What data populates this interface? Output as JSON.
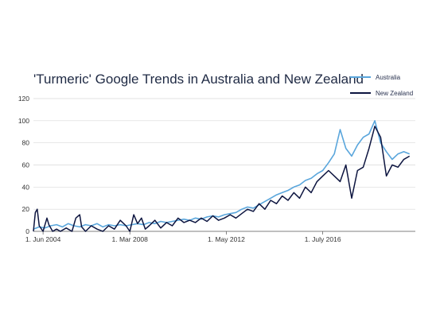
{
  "chart_data": {
    "type": "line",
    "title": "'Turmeric' Google Trends in Australia and New Zealand",
    "xlabel": "",
    "ylabel": "",
    "ylim": [
      0,
      120
    ],
    "yticks": [
      0,
      20,
      40,
      60,
      80,
      100,
      120
    ],
    "xlim": [
      "2004-01",
      "2020-07"
    ],
    "xticks": [
      {
        "date": "2004-06",
        "label": "1. Jun 2004"
      },
      {
        "date": "2008-03",
        "label": "1. Mar 2008"
      },
      {
        "date": "2012-05",
        "label": "1. May 2012"
      },
      {
        "date": "2016-07",
        "label": "1. July 2016"
      }
    ],
    "grid": "horizontal",
    "legend": "top-right",
    "series": [
      {
        "name": "Australia",
        "color": "#5aa6dc",
        "points": [
          [
            "2004-01",
            2
          ],
          [
            "2004-04",
            4
          ],
          [
            "2004-07",
            3
          ],
          [
            "2004-10",
            5
          ],
          [
            "2005-01",
            6
          ],
          [
            "2005-04",
            4
          ],
          [
            "2005-07",
            7
          ],
          [
            "2005-10",
            5
          ],
          [
            "2006-01",
            4
          ],
          [
            "2006-04",
            6
          ],
          [
            "2006-07",
            5
          ],
          [
            "2006-10",
            7
          ],
          [
            "2007-01",
            4
          ],
          [
            "2007-04",
            6
          ],
          [
            "2007-07",
            5
          ],
          [
            "2007-10",
            6
          ],
          [
            "2008-01",
            5
          ],
          [
            "2008-04",
            6
          ],
          [
            "2008-07",
            7
          ],
          [
            "2008-10",
            6
          ],
          [
            "2009-01",
            8
          ],
          [
            "2009-04",
            7
          ],
          [
            "2009-07",
            9
          ],
          [
            "2009-10",
            8
          ],
          [
            "2010-01",
            9
          ],
          [
            "2010-04",
            10
          ],
          [
            "2010-07",
            11
          ],
          [
            "2010-10",
            10
          ],
          [
            "2011-01",
            12
          ],
          [
            "2011-04",
            11
          ],
          [
            "2011-07",
            13
          ],
          [
            "2011-10",
            14
          ],
          [
            "2012-01",
            13
          ],
          [
            "2012-04",
            15
          ],
          [
            "2012-07",
            16
          ],
          [
            "2012-10",
            17
          ],
          [
            "2013-01",
            20
          ],
          [
            "2013-04",
            22
          ],
          [
            "2013-07",
            21
          ],
          [
            "2013-10",
            24
          ],
          [
            "2014-01",
            27
          ],
          [
            "2014-04",
            30
          ],
          [
            "2014-07",
            33
          ],
          [
            "2014-10",
            35
          ],
          [
            "2015-01",
            37
          ],
          [
            "2015-04",
            40
          ],
          [
            "2015-07",
            42
          ],
          [
            "2015-10",
            46
          ],
          [
            "2016-01",
            48
          ],
          [
            "2016-04",
            52
          ],
          [
            "2016-07",
            55
          ],
          [
            "2016-10",
            62
          ],
          [
            "2017-01",
            70
          ],
          [
            "2017-04",
            92
          ],
          [
            "2017-07",
            75
          ],
          [
            "2017-10",
            68
          ],
          [
            "2018-01",
            78
          ],
          [
            "2018-04",
            85
          ],
          [
            "2018-07",
            88
          ],
          [
            "2018-10",
            100
          ],
          [
            "2019-01",
            80
          ],
          [
            "2019-04",
            72
          ],
          [
            "2019-07",
            65
          ],
          [
            "2019-10",
            70
          ],
          [
            "2020-01",
            72
          ],
          [
            "2020-04",
            70
          ]
        ]
      },
      {
        "name": "New Zealand",
        "color": "#0d1540",
        "points": [
          [
            "2004-01",
            0
          ],
          [
            "2004-02",
            17
          ],
          [
            "2004-03",
            20
          ],
          [
            "2004-04",
            5
          ],
          [
            "2004-06",
            0
          ],
          [
            "2004-08",
            12
          ],
          [
            "2004-09",
            6
          ],
          [
            "2004-11",
            0
          ],
          [
            "2005-01",
            2
          ],
          [
            "2005-03",
            0
          ],
          [
            "2005-06",
            3
          ],
          [
            "2005-09",
            0
          ],
          [
            "2005-11",
            12
          ],
          [
            "2006-01",
            15
          ],
          [
            "2006-02",
            4
          ],
          [
            "2006-04",
            0
          ],
          [
            "2006-07",
            5
          ],
          [
            "2006-10",
            2
          ],
          [
            "2007-01",
            0
          ],
          [
            "2007-04",
            5
          ],
          [
            "2007-07",
            2
          ],
          [
            "2007-10",
            10
          ],
          [
            "2008-01",
            5
          ],
          [
            "2008-03",
            0
          ],
          [
            "2008-05",
            15
          ],
          [
            "2008-07",
            7
          ],
          [
            "2008-09",
            12
          ],
          [
            "2008-11",
            2
          ],
          [
            "2009-01",
            5
          ],
          [
            "2009-04",
            10
          ],
          [
            "2009-07",
            3
          ],
          [
            "2009-10",
            8
          ],
          [
            "2010-01",
            5
          ],
          [
            "2010-04",
            12
          ],
          [
            "2010-07",
            8
          ],
          [
            "2010-10",
            10
          ],
          [
            "2011-01",
            8
          ],
          [
            "2011-04",
            12
          ],
          [
            "2011-07",
            9
          ],
          [
            "2011-10",
            14
          ],
          [
            "2012-01",
            10
          ],
          [
            "2012-04",
            12
          ],
          [
            "2012-07",
            15
          ],
          [
            "2012-10",
            12
          ],
          [
            "2013-01",
            16
          ],
          [
            "2013-04",
            20
          ],
          [
            "2013-07",
            18
          ],
          [
            "2013-10",
            25
          ],
          [
            "2014-01",
            20
          ],
          [
            "2014-04",
            28
          ],
          [
            "2014-07",
            25
          ],
          [
            "2014-10",
            32
          ],
          [
            "2015-01",
            28
          ],
          [
            "2015-04",
            35
          ],
          [
            "2015-07",
            30
          ],
          [
            "2015-10",
            40
          ],
          [
            "2016-01",
            35
          ],
          [
            "2016-04",
            45
          ],
          [
            "2016-07",
            50
          ],
          [
            "2016-10",
            55
          ],
          [
            "2017-01",
            50
          ],
          [
            "2017-04",
            45
          ],
          [
            "2017-07",
            60
          ],
          [
            "2017-10",
            30
          ],
          [
            "2018-01",
            55
          ],
          [
            "2018-04",
            58
          ],
          [
            "2018-07",
            75
          ],
          [
            "2018-10",
            95
          ],
          [
            "2019-01",
            85
          ],
          [
            "2019-04",
            50
          ],
          [
            "2019-07",
            60
          ],
          [
            "2019-10",
            58
          ],
          [
            "2020-01",
            65
          ],
          [
            "2020-04",
            68
          ]
        ]
      }
    ]
  }
}
